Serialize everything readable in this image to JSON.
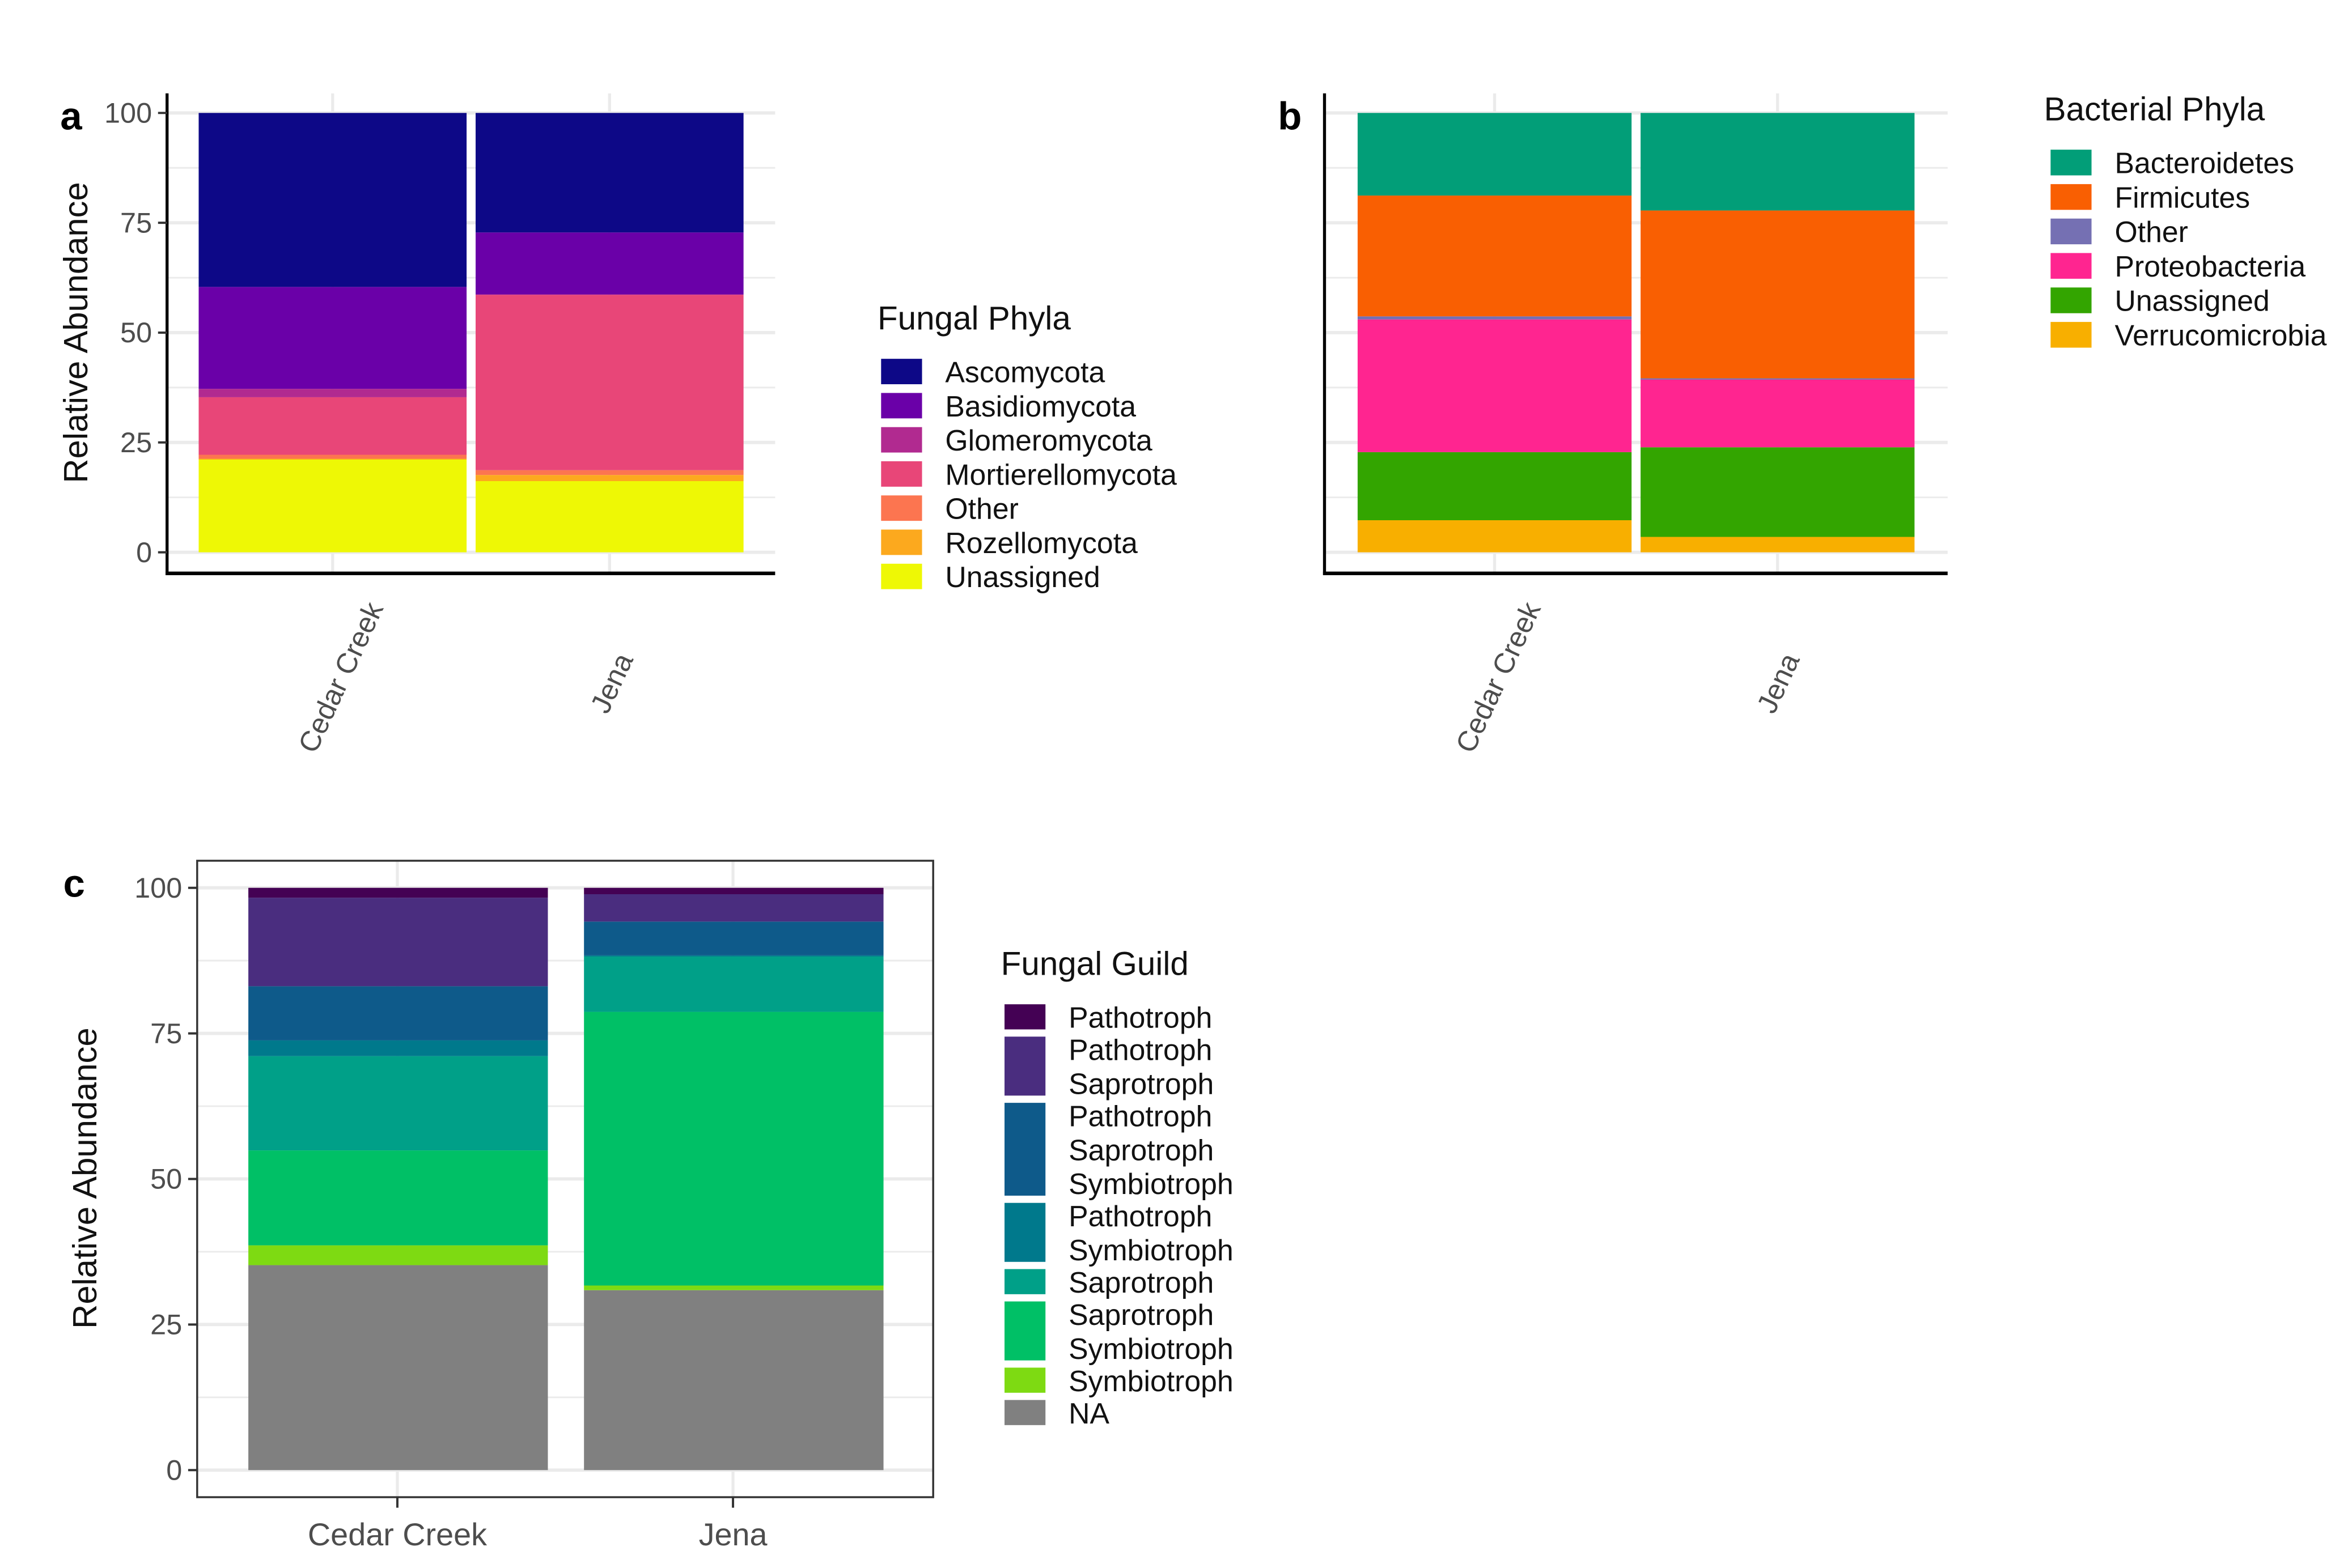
{
  "chart_data": [
    {
      "panel": "a",
      "type": "bar",
      "stacked": true,
      "title": "",
      "xlabel": "",
      "ylabel": "Relative Abundance",
      "ylim": [
        0,
        100
      ],
      "yticks": [
        "0",
        "25",
        "50",
        "75",
        "100"
      ],
      "categories": [
        "Cedar Creek",
        "Jena"
      ],
      "legend_title": "Fungal Phyla",
      "legend_position": "right",
      "series": [
        {
          "name": [
            "Ascomycota"
          ],
          "color": "#0D0887",
          "values": [
            39.6,
            27.2
          ]
        },
        {
          "name": [
            "Basidiomycota"
          ],
          "color": "#6A00A8",
          "values": [
            23.2,
            14.1
          ]
        },
        {
          "name": [
            "Glomeromycota"
          ],
          "color": "#B12A90",
          "values": [
            1.9,
            0.1
          ]
        },
        {
          "name": [
            "Mortierellomycota"
          ],
          "color": "#E84678",
          "values": [
            13.1,
            39.9
          ]
        },
        {
          "name": [
            "Other"
          ],
          "color": "#FC7550",
          "values": [
            0.9,
            1.1
          ]
        },
        {
          "name": [
            "Rozellomycota"
          ],
          "color": "#FCA91E",
          "values": [
            0.2,
            1.4
          ]
        },
        {
          "name": [
            "Unassigned"
          ],
          "color": "#EEF805",
          "values": [
            21.1,
            16.2
          ]
        }
      ]
    },
    {
      "panel": "b",
      "type": "bar",
      "stacked": true,
      "title": "",
      "xlabel": "",
      "ylabel": "",
      "ylim": [
        0,
        100
      ],
      "yticks": [],
      "categories": [
        "Cedar Creek",
        "Jena"
      ],
      "legend_title": "Bacterial Phyla",
      "legend_position": "right",
      "series": [
        {
          "name": [
            "Bacteroidetes"
          ],
          "color": "#029E78",
          "values": [
            18.8,
            22.2
          ]
        },
        {
          "name": [
            "Firmicutes"
          ],
          "color": "#F95F02",
          "values": [
            27.5,
            38.2
          ]
        },
        {
          "name": [
            "Other"
          ],
          "color": "#7570B3",
          "values": [
            0.7,
            0.3
          ]
        },
        {
          "name": [
            "Proteobacteria"
          ],
          "color": "#FF2590",
          "values": [
            30.2,
            15.4
          ]
        },
        {
          "name": [
            "Unassigned"
          ],
          "color": "#33A500",
          "values": [
            15.5,
            20.4
          ]
        },
        {
          "name": [
            "Verrucomicrobia"
          ],
          "color": "#F8AF00",
          "values": [
            7.3,
            3.5
          ]
        }
      ]
    },
    {
      "panel": "c",
      "type": "bar",
      "stacked": true,
      "title": "",
      "xlabel": "",
      "ylabel": "Relative Abundance",
      "ylim": [
        0,
        100
      ],
      "yticks": [
        "0",
        "25",
        "50",
        "75",
        "100"
      ],
      "categories": [
        "Cedar Creek",
        "Jena"
      ],
      "legend_title": "Fungal Guild",
      "legend_position": "right",
      "series": [
        {
          "name": [
            "Pathotroph"
          ],
          "color": "#440154",
          "values": [
            1.7,
            1.1
          ]
        },
        {
          "name": [
            "Pathotroph",
            "Saprotroph"
          ],
          "color": "#4A2D7F",
          "values": [
            15.2,
            4.7
          ]
        },
        {
          "name": [
            "Pathotroph",
            "Saprotroph",
            "Symbiotroph"
          ],
          "color": "#0E5A8A",
          "values": [
            9.3,
            5.8
          ]
        },
        {
          "name": [
            "Pathotroph",
            "Symbiotroph"
          ],
          "color": "#00798C",
          "values": [
            2.7,
            0.2
          ]
        },
        {
          "name": [
            "Saprotroph"
          ],
          "color": "#00A088",
          "values": [
            16.2,
            9.5
          ]
        },
        {
          "name": [
            "Saprotroph",
            "Symbiotroph"
          ],
          "color": "#00C066",
          "values": [
            16.3,
            47.0
          ]
        },
        {
          "name": [
            "Symbiotroph"
          ],
          "color": "#7EDA12",
          "values": [
            3.4,
            0.8
          ]
        },
        {
          "name": [
            "NA"
          ],
          "color": "#808080",
          "values": [
            35.2,
            30.9
          ]
        }
      ]
    }
  ]
}
